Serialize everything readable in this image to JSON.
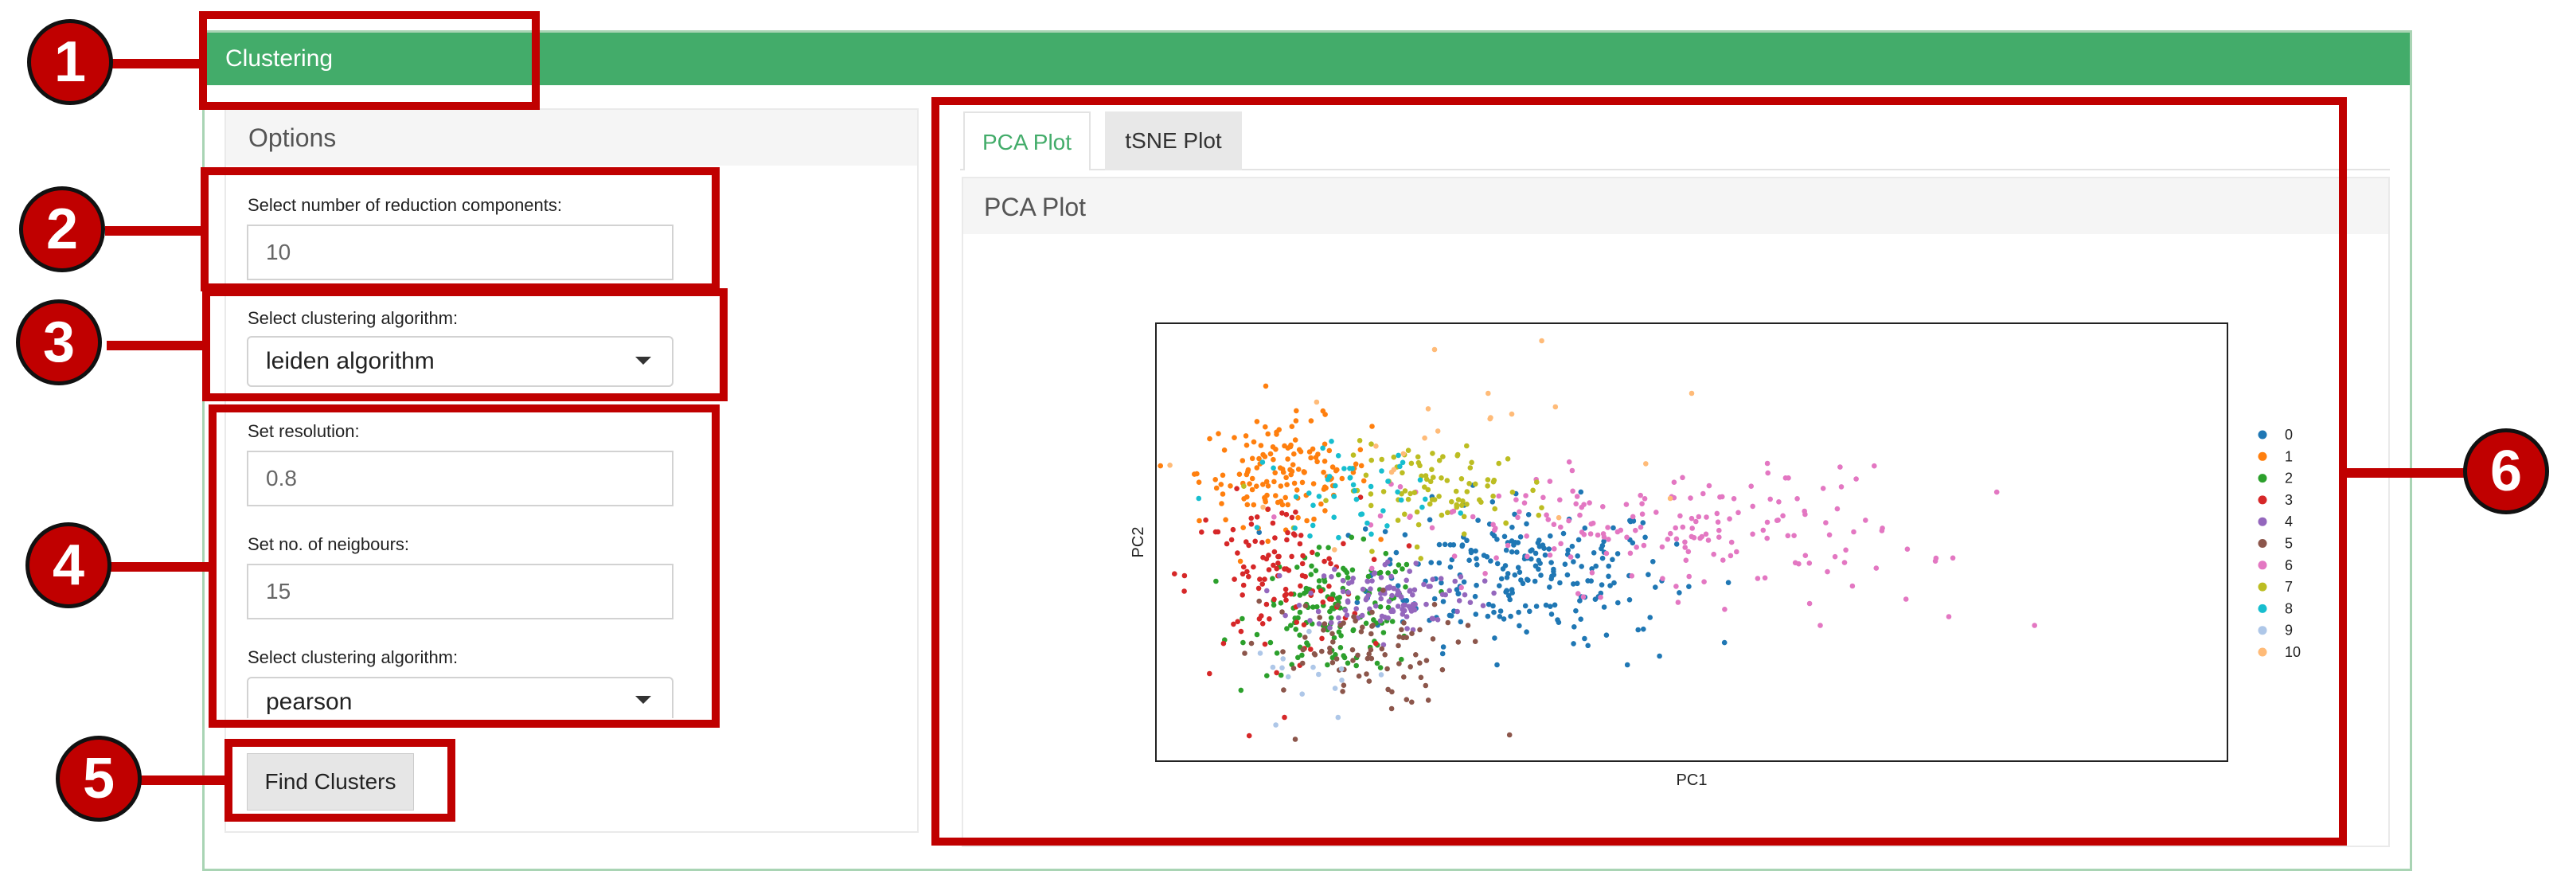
{
  "header": {
    "title": "Clustering"
  },
  "options": {
    "title": "Options",
    "reduction": {
      "label": "Select number of reduction components:",
      "value": "10"
    },
    "algorithm": {
      "label": "Select clustering algorithm:",
      "value": "leiden algorithm"
    },
    "resolution": {
      "label": "Set resolution:",
      "value": "0.8"
    },
    "neighbours": {
      "label": "Set no. of neigbours:",
      "value": "15"
    },
    "distance": {
      "label": "Select clustering algorithm:",
      "value": "pearson"
    },
    "find_button": "Find Clusters"
  },
  "tabs": [
    {
      "label": "PCA Plot",
      "active": true
    },
    {
      "label": "tSNE Plot",
      "active": false
    }
  ],
  "plot_panel": {
    "title": "PCA Plot"
  },
  "annotations": [
    "1",
    "2",
    "3",
    "4",
    "5",
    "6"
  ],
  "colors": {
    "accent": "#43ac6a",
    "annotation": "#c00000"
  },
  "chart_data": {
    "type": "scatter",
    "title": "",
    "xlabel": "PC1",
    "ylabel": "PC2",
    "grid": false,
    "legend_position": "right",
    "xlim": [
      0,
      100
    ],
    "ylim": [
      0,
      100
    ],
    "series": [
      {
        "name": "0",
        "color": "#1f77b4",
        "center": [
          34,
          43
        ],
        "spread": [
          7,
          8
        ],
        "count": 230,
        "points": [
          [
            45,
            30
          ],
          [
            47,
            24
          ],
          [
            40,
            28
          ],
          [
            44,
            22
          ]
        ]
      },
      {
        "name": "1",
        "color": "#ff7f0e",
        "center": [
          12,
          66
        ],
        "spread": [
          4,
          6
        ],
        "count": 140,
        "points": [
          [
            10,
            70
          ],
          [
            12,
            72
          ],
          [
            9,
            62
          ]
        ]
      },
      {
        "name": "2",
        "color": "#2ca02c",
        "center": [
          17,
          34
        ],
        "spread": [
          4,
          7
        ],
        "count": 140,
        "points": [
          [
            16,
            22
          ],
          [
            20,
            26
          ]
        ]
      },
      {
        "name": "3",
        "color": "#d62728",
        "center": [
          11,
          42
        ],
        "spread": [
          4,
          9
        ],
        "count": 110,
        "points": [
          [
            5,
            20
          ],
          [
            12,
            10
          ]
        ]
      },
      {
        "name": "4",
        "color": "#9467bd",
        "center": [
          22,
          38
        ],
        "spread": [
          4,
          4
        ],
        "count": 110,
        "points": [
          [
            24,
            30
          ]
        ]
      },
      {
        "name": "5",
        "color": "#8c564b",
        "center": [
          18,
          25
        ],
        "spread": [
          5,
          6
        ],
        "count": 80,
        "points": [
          [
            13,
            5
          ],
          [
            33,
            6
          ],
          [
            22,
            12
          ]
        ]
      },
      {
        "name": "6",
        "color": "#e377c2",
        "center": [
          47,
          53
        ],
        "spread": [
          12,
          7
        ],
        "count": 180,
        "points": [
          [
            82,
            31
          ],
          [
            65,
            40
          ],
          [
            61,
            36
          ],
          [
            70,
            37
          ],
          [
            74,
            33
          ],
          [
            62,
            31
          ]
        ]
      },
      {
        "name": "7",
        "color": "#bcbd22",
        "center": [
          27,
          62
        ],
        "spread": [
          5,
          5
        ],
        "count": 90,
        "points": [
          [
            32,
            68
          ],
          [
            29,
            72
          ]
        ]
      },
      {
        "name": "8",
        "color": "#17becf",
        "center": [
          18,
          62
        ],
        "spread": [
          4,
          5
        ],
        "count": 45,
        "points": [
          [
            4,
            60
          ]
        ]
      },
      {
        "name": "9",
        "color": "#aec7e8",
        "center": [
          15,
          20
        ],
        "spread": [
          3,
          4
        ],
        "count": 14,
        "points": [
          [
            17,
            10
          ]
        ]
      },
      {
        "name": "10",
        "color": "#ffbb78",
        "center": [
          30,
          70
        ],
        "spread": [
          12,
          10
        ],
        "count": 14,
        "points": [
          [
            36,
            96
          ],
          [
            31,
            84
          ],
          [
            15,
            82
          ],
          [
            50,
            84
          ],
          [
            26,
            94
          ],
          [
            22,
            66
          ],
          [
            10,
            58
          ],
          [
            48,
            60
          ]
        ]
      }
    ]
  }
}
